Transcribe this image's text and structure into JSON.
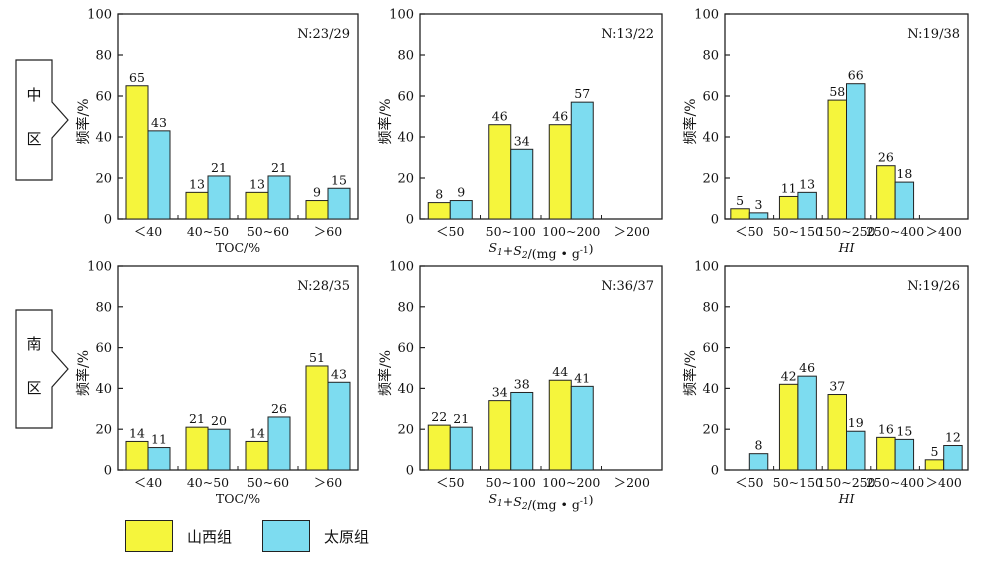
{
  "colors": {
    "shanxi": "#f5f53c",
    "taiyuan": "#7ddcf0",
    "stroke": "#222222"
  },
  "legend": {
    "shanxi": "山西组",
    "taiyuan": "太原组"
  },
  "regions": [
    {
      "label": "中区",
      "chars": [
        "中",
        "区"
      ]
    },
    {
      "label": "南区",
      "chars": [
        "南",
        "区"
      ]
    }
  ],
  "chart_data": [
    {
      "type": "bar",
      "region": "中区",
      "n_label": "N:23/29",
      "ylabel": "频率/%",
      "xlabel": "TOC/%",
      "xlabel_italic": false,
      "categories": [
        "<40",
        "40~50",
        "50~60",
        ">60"
      ],
      "ylim": [
        0,
        100
      ],
      "yticks": [
        0,
        20,
        40,
        60,
        80,
        100
      ],
      "series": [
        {
          "name": "山西组",
          "values": [
            65,
            13,
            13,
            9
          ]
        },
        {
          "name": "太原组",
          "values": [
            43,
            21,
            21,
            15
          ]
        }
      ]
    },
    {
      "type": "bar",
      "region": "中区",
      "n_label": "N:13/22",
      "ylabel": "频率/%",
      "xlabel": "S1+S2/(mg • g-1)",
      "xlabel_italic": false,
      "categories": [
        "<50",
        "50~100",
        "100~200",
        ">200"
      ],
      "ylim": [
        0,
        100
      ],
      "yticks": [
        0,
        20,
        40,
        60,
        80,
        100
      ],
      "series": [
        {
          "name": "山西组",
          "values": [
            8,
            46,
            46,
            null
          ]
        },
        {
          "name": "太原组",
          "values": [
            9,
            34,
            57,
            null
          ]
        }
      ]
    },
    {
      "type": "bar",
      "region": "中区",
      "n_label": "N:19/38",
      "ylabel": "频率/%",
      "xlabel": "HI",
      "xlabel_italic": true,
      "categories": [
        "<50",
        "50~150",
        "150~250",
        "250~400",
        ">400"
      ],
      "ylim": [
        0,
        100
      ],
      "yticks": [
        0,
        20,
        40,
        60,
        80,
        100
      ],
      "series": [
        {
          "name": "山西组",
          "values": [
            5,
            11,
            58,
            26,
            null
          ]
        },
        {
          "name": "太原组",
          "values": [
            3,
            13,
            66,
            18,
            null
          ]
        }
      ]
    },
    {
      "type": "bar",
      "region": "南区",
      "n_label": "N:28/35",
      "ylabel": "频率/%",
      "xlabel": "TOC/%",
      "xlabel_italic": false,
      "categories": [
        "<40",
        "40~50",
        "50~60",
        ">60"
      ],
      "ylim": [
        0,
        100
      ],
      "yticks": [
        0,
        20,
        40,
        60,
        80,
        100
      ],
      "series": [
        {
          "name": "山西组",
          "values": [
            14,
            21,
            14,
            51
          ]
        },
        {
          "name": "太原组",
          "values": [
            11,
            20,
            26,
            43
          ]
        }
      ]
    },
    {
      "type": "bar",
      "region": "南区",
      "n_label": "N:36/37",
      "ylabel": "频率/%",
      "xlabel": "S1+S2/(mg • g-1)",
      "xlabel_italic": false,
      "categories": [
        "<50",
        "50~100",
        "100~200",
        ">200"
      ],
      "ylim": [
        0,
        100
      ],
      "yticks": [
        0,
        20,
        40,
        60,
        80,
        100
      ],
      "series": [
        {
          "name": "山西组",
          "values": [
            22,
            34,
            44,
            null
          ]
        },
        {
          "name": "太原组",
          "values": [
            21,
            38,
            41,
            null
          ]
        }
      ]
    },
    {
      "type": "bar",
      "region": "南区",
      "n_label": "N:19/26",
      "ylabel": "频率/%",
      "xlabel": "HI",
      "xlabel_italic": true,
      "categories": [
        "<50",
        "50~150",
        "150~250",
        "250~400",
        ">400"
      ],
      "ylim": [
        0,
        100
      ],
      "yticks": [
        0,
        20,
        40,
        60,
        80,
        100
      ],
      "series": [
        {
          "name": "山西组",
          "values": [
            null,
            42,
            37,
            16,
            5
          ]
        },
        {
          "name": "太原组",
          "values": [
            8,
            46,
            19,
            15,
            12
          ]
        }
      ]
    }
  ]
}
